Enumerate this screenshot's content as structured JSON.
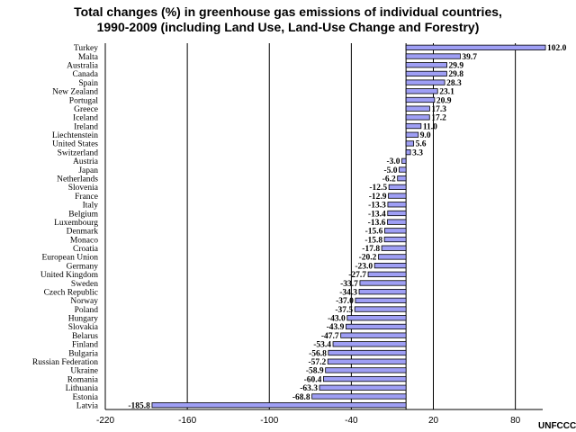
{
  "chart_data": {
    "type": "bar",
    "orientation": "horizontal",
    "title": [
      "Total changes (%) in greenhouse gas emissions of individual countries,",
      "1990-2009 (including Land Use, Land-Use Change and Forestry)"
    ],
    "source": "UNFCCC",
    "xlim": [
      -220,
      100
    ],
    "xticks": [
      -220,
      -160,
      -100,
      -40,
      20,
      80
    ],
    "grid": "vertical",
    "categories": [
      "Turkey",
      "Malta",
      "Australia",
      "Canada",
      "Spain",
      "New Zealand",
      "Portugal",
      "Greece",
      "Iceland",
      "Ireland",
      "Liechtenstein",
      "United States",
      "Switzerland",
      "Austria",
      "Japan",
      "Netherlands",
      "Slovenia",
      "France",
      "Italy",
      "Belgium",
      "Luxembourg",
      "Denmark",
      "Monaco",
      "Croatia",
      "European Union",
      "Germany",
      "United Kingdom",
      "Sweden",
      "Czech Republic",
      "Norway",
      "Poland",
      "Hungary",
      "Slovakia",
      "Belarus",
      "Finland",
      "Bulgaria",
      "Russian Federation",
      "Ukraine",
      "Romania",
      "Lithuania",
      "Estonia",
      "Latvia"
    ],
    "values": [
      102.0,
      39.7,
      29.9,
      29.8,
      28.3,
      23.1,
      20.9,
      17.3,
      17.2,
      11.0,
      9.0,
      5.6,
      3.3,
      -3.0,
      -5.0,
      -6.2,
      -12.5,
      -12.9,
      -13.3,
      -13.4,
      -13.6,
      -15.6,
      -15.8,
      -17.8,
      -20.2,
      -23.0,
      -27.7,
      -33.7,
      -34.3,
      -37.0,
      -37.5,
      -43.0,
      -43.9,
      -47.7,
      -53.4,
      -56.8,
      -57.2,
      -58.9,
      -60.4,
      -63.3,
      -68.8,
      -185.8
    ],
    "value_labels": [
      "102.0",
      "39.7",
      "29.9",
      "29.8",
      "28.3",
      "23.1",
      "20.9",
      "17.3",
      "17.2",
      "11.0",
      "9.0",
      "5.6",
      "3.3",
      "-3.0",
      "-5.0",
      "-6.2",
      "-12.5",
      "-12.9",
      "-13.3",
      "-13.4",
      "-13.6",
      "-15.6",
      "-15.8",
      "-17.8",
      "-20.2",
      "-23.0",
      "-27.7",
      "-33.7",
      "-34.3",
      "-37.0",
      "-37.5",
      "-43.0",
      "-43.9",
      "-47.7",
      "-53.4",
      "-56.8",
      "-57.2",
      "-58.9",
      "-60.4",
      "-63.3",
      "-68.8",
      "-185.8"
    ],
    "bar_color": "#9f9ff5"
  }
}
